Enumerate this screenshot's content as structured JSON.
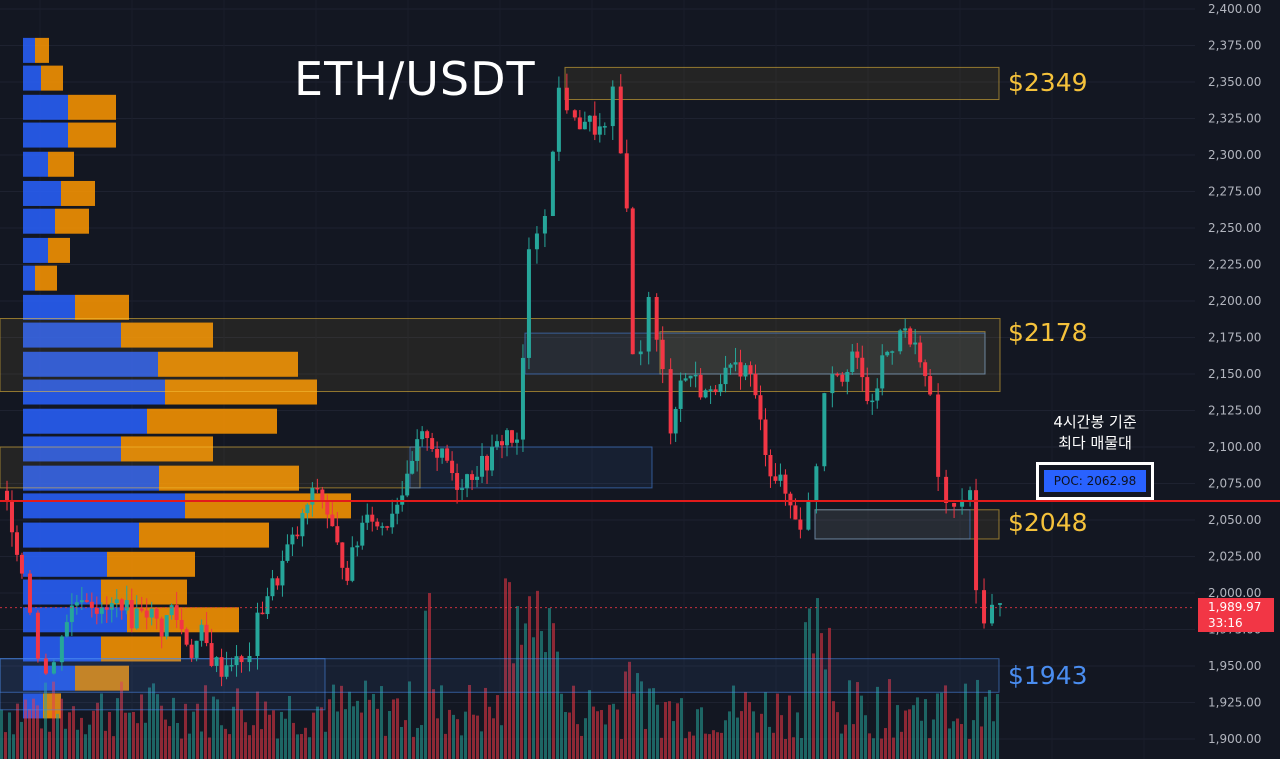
{
  "title": "ETH/USDT",
  "annotation": {
    "line1": "4시간봉 기준",
    "line2": "최다 매물대",
    "poc_label": "POC: 2062.98"
  },
  "current_price": {
    "price": "1,989.97",
    "countdown": "33:16"
  },
  "levels": [
    {
      "label": "$2349",
      "value": 2349,
      "color": "#f5c23b"
    },
    {
      "label": "$2178",
      "value": 2178,
      "color": "#f5c23b"
    },
    {
      "label": "$2048",
      "value": 2048,
      "color": "#f5c23b"
    },
    {
      "label": "$1943",
      "value": 1943,
      "color": "#4a8df0"
    }
  ],
  "colors": {
    "up": "#26a69a",
    "down": "#f23645",
    "poc_line": "#e21b1b",
    "volume_profile_blue": "#2962ff",
    "volume_profile_orange": "#ff9800",
    "zone_yellow": "#f5c23b",
    "zone_blue": "#4a8df0",
    "background": "#131722"
  },
  "chart_data": {
    "type": "candlestick",
    "title": "ETH/USDT",
    "timeframe": "4시간봉",
    "ylim": [
      1890,
      2400
    ],
    "y_ticks": [
      "2,400.00",
      "2,375.00",
      "2,350.00",
      "2,325.00",
      "2,300.00",
      "2,275.00",
      "2,250.00",
      "2,225.00",
      "2,200.00",
      "2,175.00",
      "2,150.00",
      "2,125.00",
      "2,100.00",
      "2,075.00",
      "2,050.00",
      "2,025.00",
      "2,000.00",
      "1,975.00",
      "1,950.00",
      "1,925.00",
      "1,900.00"
    ],
    "poc": 2062.98,
    "last_price": 1989.97,
    "key_levels": [
      2349,
      2178,
      2048,
      1943
    ],
    "zones": [
      {
        "low": 2338,
        "high": 2360,
        "color": "yellow"
      },
      {
        "low": 2150,
        "high": 2180,
        "color": "yellow"
      },
      {
        "low": 2138,
        "high": 2188,
        "color": "yellow"
      },
      {
        "low": 2072,
        "high": 2100,
        "color": "yellow"
      },
      {
        "low": 2037,
        "high": 2057,
        "color": "yellow"
      },
      {
        "low": 2072,
        "high": 2100,
        "color": "blue"
      },
      {
        "low": 2150,
        "high": 2178,
        "color": "blue"
      },
      {
        "low": 2037,
        "high": 2057,
        "color": "blue"
      },
      {
        "low": 1932,
        "high": 1955,
        "color": "blue"
      },
      {
        "low": 1920,
        "high": 1955,
        "color": "blue"
      }
    ],
    "close_path": [
      [
        0,
        2070
      ],
      [
        10,
        2048
      ],
      [
        20,
        2015
      ],
      [
        28,
        1990
      ],
      [
        36,
        1960
      ],
      [
        44,
        1945
      ],
      [
        52,
        1950
      ],
      [
        60,
        1975
      ],
      [
        70,
        1990
      ],
      [
        80,
        2000
      ],
      [
        90,
        1995
      ],
      [
        100,
        1985
      ],
      [
        110,
        1990
      ],
      [
        120,
        1995
      ],
      [
        130,
        1982
      ],
      [
        140,
        1992
      ],
      [
        150,
        1985
      ],
      [
        160,
        1975
      ],
      [
        170,
        1990
      ],
      [
        180,
        1975
      ],
      [
        190,
        1960
      ],
      [
        200,
        1972
      ],
      [
        210,
        1955
      ],
      [
        220,
        1948
      ],
      [
        230,
        1955
      ],
      [
        240,
        1950
      ],
      [
        248,
        1960
      ],
      [
        256,
        1980
      ],
      [
        266,
        2000
      ],
      [
        276,
        2010
      ],
      [
        286,
        2030
      ],
      [
        296,
        2040
      ],
      [
        306,
        2060
      ],
      [
        316,
        2072
      ],
      [
        326,
        2055
      ],
      [
        336,
        2030
      ],
      [
        346,
        2015
      ],
      [
        356,
        2035
      ],
      [
        366,
        2060
      ],
      [
        376,
        2045
      ],
      [
        386,
        2050
      ],
      [
        396,
        2065
      ],
      [
        406,
        2075
      ],
      [
        416,
        2100
      ],
      [
        426,
        2110
      ],
      [
        436,
        2095
      ],
      [
        446,
        2090
      ],
      [
        456,
        2075
      ],
      [
        466,
        2080
      ],
      [
        476,
        2085
      ],
      [
        486,
        2090
      ],
      [
        496,
        2100
      ],
      [
        506,
        2110
      ],
      [
        516,
        2100
      ],
      [
        522,
        2160
      ],
      [
        528,
        2230
      ],
      [
        536,
        2250
      ],
      [
        544,
        2265
      ],
      [
        552,
        2300
      ],
      [
        558,
        2345
      ],
      [
        566,
        2335
      ],
      [
        574,
        2320
      ],
      [
        584,
        2325
      ],
      [
        594,
        2318
      ],
      [
        604,
        2315
      ],
      [
        612,
        2340
      ],
      [
        620,
        2300
      ],
      [
        626,
        2270
      ],
      [
        632,
        2160
      ],
      [
        640,
        2170
      ],
      [
        648,
        2200
      ],
      [
        656,
        2170
      ],
      [
        662,
        2150
      ],
      [
        670,
        2115
      ],
      [
        680,
        2145
      ],
      [
        690,
        2150
      ],
      [
        700,
        2140
      ],
      [
        710,
        2135
      ],
      [
        720,
        2150
      ],
      [
        730,
        2150
      ],
      [
        740,
        2155
      ],
      [
        750,
        2150
      ],
      [
        760,
        2115
      ],
      [
        770,
        2085
      ],
      [
        780,
        2075
      ],
      [
        790,
        2060
      ],
      [
        800,
        2048
      ],
      [
        808,
        2060
      ],
      [
        816,
        2090
      ],
      [
        824,
        2140
      ],
      [
        832,
        2155
      ],
      [
        842,
        2150
      ],
      [
        852,
        2165
      ],
      [
        862,
        2145
      ],
      [
        872,
        2125
      ],
      [
        882,
        2160
      ],
      [
        892,
        2170
      ],
      [
        900,
        2185
      ],
      [
        910,
        2170
      ],
      [
        920,
        2165
      ],
      [
        930,
        2130
      ],
      [
        938,
        2080
      ],
      [
        946,
        2060
      ],
      [
        954,
        2055
      ],
      [
        962,
        2065
      ],
      [
        970,
        2065
      ],
      [
        976,
        2000
      ],
      [
        984,
        1985
      ],
      [
        992,
        1990
      ],
      [
        1000,
        1990
      ]
    ],
    "volume_bars_note": "volume histogram along bottom",
    "volume_profile_note": "horizontal volume profile at left (blue/orange)"
  }
}
